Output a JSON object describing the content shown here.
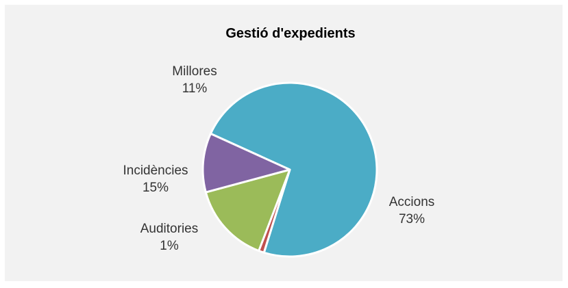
{
  "chart_data": {
    "type": "pie",
    "title": "Gestió d'expedients",
    "slices": [
      {
        "label": "Accions",
        "percent_label": "73%",
        "value": 73,
        "color": "#4bacc6"
      },
      {
        "label": "Auditories",
        "percent_label": "1%",
        "value": 1,
        "color": "#c0504d"
      },
      {
        "label": "Incidències",
        "percent_label": "15%",
        "value": 15,
        "color": "#9bbb59"
      },
      {
        "label": "Millores",
        "percent_label": "11%",
        "value": 11,
        "color": "#8064a2"
      }
    ],
    "legend": "none",
    "data_labels": "outside"
  }
}
